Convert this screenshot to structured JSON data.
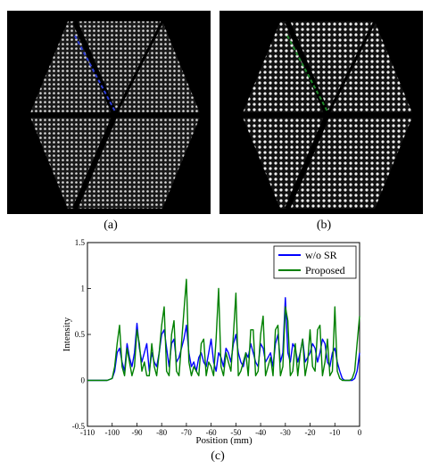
{
  "panels": [
    {
      "label": "(a)",
      "line_color": "#2f3fd8"
    },
    {
      "label": "(b)",
      "line_color": "#1f8a2a"
    }
  ],
  "chart_label": "(c)",
  "chart_data": {
    "type": "line",
    "title": "",
    "xlabel": "Position (mm)",
    "ylabel": "Intensity",
    "xlim": [
      -110,
      0
    ],
    "ylim": [
      -0.5,
      1.5
    ],
    "xticks": [
      -110,
      -100,
      -90,
      -80,
      -70,
      -60,
      -50,
      -40,
      -30,
      -20,
      -10,
      0
    ],
    "yticks": [
      -0.5,
      0,
      0.5,
      1,
      1.5
    ],
    "xtick_labels": [
      "-110",
      "-100",
      "-90",
      "-80",
      "-70",
      "-60",
      "-50",
      "-40",
      "-30",
      "-20",
      "-10",
      "0"
    ],
    "ytick_labels": [
      "-0.5",
      "0",
      "0.5",
      "1",
      "1.5"
    ],
    "grid": false,
    "legend_position": "top-right",
    "series": [
      {
        "name": "w/o SR",
        "color": "#0000ff",
        "x": [
          -110,
          -102,
          -100,
          -99,
          -98,
          -97,
          -96,
          -95,
          -94,
          -93,
          -92,
          -91,
          -90,
          -89,
          -88,
          -87,
          -86,
          -85,
          -84,
          -83,
          -82,
          -81,
          -80,
          -79,
          -78,
          -77,
          -76,
          -75,
          -74,
          -73,
          -72,
          -71,
          -70,
          -69,
          -68,
          -67,
          -66,
          -65,
          -64,
          -63,
          -62,
          -61,
          -60,
          -59,
          -58,
          -57,
          -56,
          -55,
          -54,
          -53,
          -52,
          -51,
          -50,
          -49,
          -48,
          -47,
          -46,
          -45,
          -44,
          -43,
          -42,
          -41,
          -40,
          -39,
          -38,
          -37,
          -36,
          -35,
          -34,
          -33,
          -32,
          -31,
          -30,
          -29,
          -28,
          -27,
          -26,
          -25,
          -24,
          -23,
          -22,
          -21,
          -20,
          -19,
          -18,
          -17,
          -16,
          -15,
          -14,
          -13,
          -12,
          -11,
          -10,
          -9,
          -8,
          -7,
          -6,
          -5,
          -4,
          -3,
          -2,
          -1,
          0
        ],
        "y": [
          0,
          0,
          0.02,
          0.1,
          0.3,
          0.35,
          0.2,
          0.1,
          0.4,
          0.25,
          0.15,
          0.3,
          0.62,
          0.35,
          0.2,
          0.3,
          0.4,
          0.1,
          0.3,
          0.2,
          0.15,
          0.3,
          0.5,
          0.55,
          0.35,
          0.15,
          0.4,
          0.45,
          0.2,
          0.25,
          0.35,
          0.45,
          0.6,
          0.3,
          0.15,
          0.2,
          0.1,
          0.25,
          0.3,
          0.2,
          0.15,
          0.3,
          0.45,
          0.2,
          0.1,
          0.3,
          0.25,
          0.15,
          0.35,
          0.3,
          0.2,
          0.4,
          0.5,
          0.3,
          0.2,
          0.15,
          0.3,
          0.25,
          0.4,
          0.3,
          0.2,
          0.15,
          0.4,
          0.35,
          0.2,
          0.25,
          0.3,
          0.15,
          0.4,
          0.5,
          0.2,
          0.3,
          0.9,
          0.3,
          0.2,
          0.4,
          0.35,
          0.2,
          0.3,
          0.45,
          0.2,
          0.25,
          0.3,
          0.4,
          0.35,
          0.2,
          0.3,
          0.45,
          0.4,
          0.2,
          0.15,
          0.3,
          0.35,
          0.2,
          0.1,
          0.02,
          0,
          0,
          0,
          0,
          0.02,
          0.1,
          0.3
        ]
      },
      {
        "name": "Proposed",
        "color": "#008000",
        "x": [
          -110,
          -102,
          -100,
          -99,
          -98,
          -97,
          -96,
          -95,
          -94,
          -93,
          -92,
          -91,
          -90,
          -89,
          -88,
          -87,
          -86,
          -85,
          -84,
          -83,
          -82,
          -81,
          -80,
          -79,
          -78,
          -77,
          -76,
          -75,
          -74,
          -73,
          -72,
          -71,
          -70,
          -69,
          -68,
          -67,
          -66,
          -65,
          -64,
          -63,
          -62,
          -61,
          -60,
          -59,
          -58,
          -57,
          -56,
          -55,
          -54,
          -53,
          -52,
          -51,
          -50,
          -49,
          -48,
          -47,
          -46,
          -45,
          -44,
          -43,
          -42,
          -41,
          -40,
          -39,
          -38,
          -37,
          -36,
          -35,
          -34,
          -33,
          -32,
          -31,
          -30,
          -29,
          -28,
          -27,
          -26,
          -25,
          -24,
          -23,
          -22,
          -21,
          -20,
          -19,
          -18,
          -17,
          -16,
          -15,
          -14,
          -13,
          -12,
          -11,
          -10,
          -9,
          -8,
          -7,
          -6,
          -5,
          -4,
          -3,
          -2,
          -1,
          0
        ],
        "y": [
          0,
          0,
          0.02,
          0.15,
          0.4,
          0.6,
          0.15,
          0.05,
          0.35,
          0.2,
          0.05,
          0.15,
          0.55,
          0.4,
          0.1,
          0.2,
          0.05,
          0.05,
          0.4,
          0.15,
          0.05,
          0.3,
          0.6,
          0.8,
          0.1,
          0.05,
          0.5,
          0.65,
          0.1,
          0.05,
          0.4,
          0.75,
          1.1,
          0.2,
          0.05,
          0.15,
          0.1,
          0.05,
          0.4,
          0.45,
          0.05,
          0.2,
          0.15,
          0.05,
          0.45,
          1.0,
          0.15,
          0.05,
          0.3,
          0.2,
          0.1,
          0.5,
          0.95,
          0.05,
          0.1,
          0.2,
          0.3,
          0.05,
          0.55,
          0.55,
          0.05,
          0.1,
          0.5,
          0.7,
          0.05,
          0.15,
          0.25,
          0.05,
          0.55,
          0.6,
          0.05,
          0.15,
          0.8,
          0.65,
          0.05,
          0.1,
          0.4,
          0.05,
          0.3,
          0.45,
          0.05,
          0.2,
          0.55,
          0.15,
          0.1,
          0.55,
          0.6,
          0.05,
          0.2,
          0.45,
          0.05,
          0.1,
          0.8,
          0.1,
          0.02,
          0,
          0,
          0,
          0,
          0.02,
          0.1,
          0.4,
          0.7
        ]
      }
    ]
  }
}
